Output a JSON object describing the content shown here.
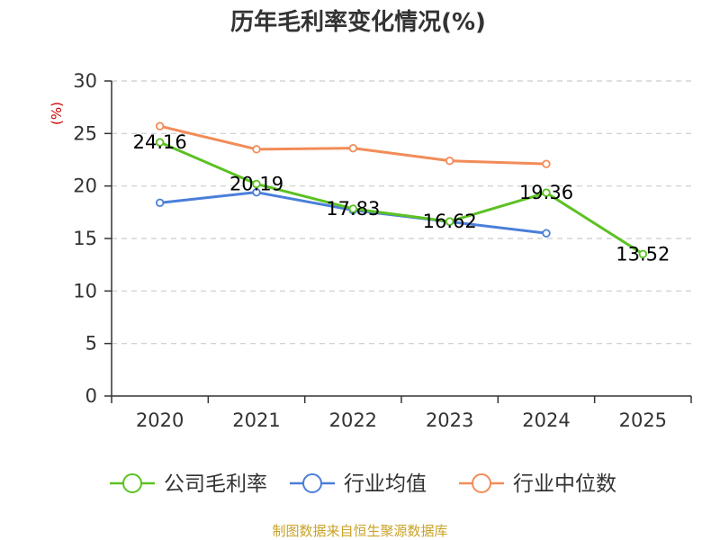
{
  "chart_data": {
    "type": "line",
    "title": "历年毛利率变化情况(%)",
    "ylabel": "(%)",
    "xlabel": "",
    "categories": [
      "2020",
      "2021",
      "2022",
      "2023",
      "2024",
      "2025"
    ],
    "ylim": [
      0,
      30
    ],
    "yticks": [
      "0",
      "5",
      "10",
      "15",
      "20",
      "25",
      "30"
    ],
    "grid": true,
    "legend_position": "bottom",
    "series": [
      {
        "name": "公司毛利率",
        "color": "#5cc123",
        "values": [
          24.16,
          20.19,
          17.83,
          16.62,
          19.36,
          13.52
        ],
        "labels": [
          "24.16",
          "20.19",
          "17.83",
          "16.62",
          "19.36",
          "13.52"
        ]
      },
      {
        "name": "行业均值",
        "color": "#4a7fd9",
        "values": [
          18.4,
          19.4,
          17.7,
          16.6,
          15.5,
          null
        ]
      },
      {
        "name": "行业中位数",
        "color": "#f28c58",
        "values": [
          25.7,
          23.5,
          23.6,
          22.4,
          22.1,
          null
        ]
      }
    ],
    "source": "制图数据来自恒生聚源数据库"
  },
  "colors": {
    "axis": "#333333",
    "grid": "#cccccc",
    "ylabel": "#cc0000",
    "source": "#c9a227"
  }
}
